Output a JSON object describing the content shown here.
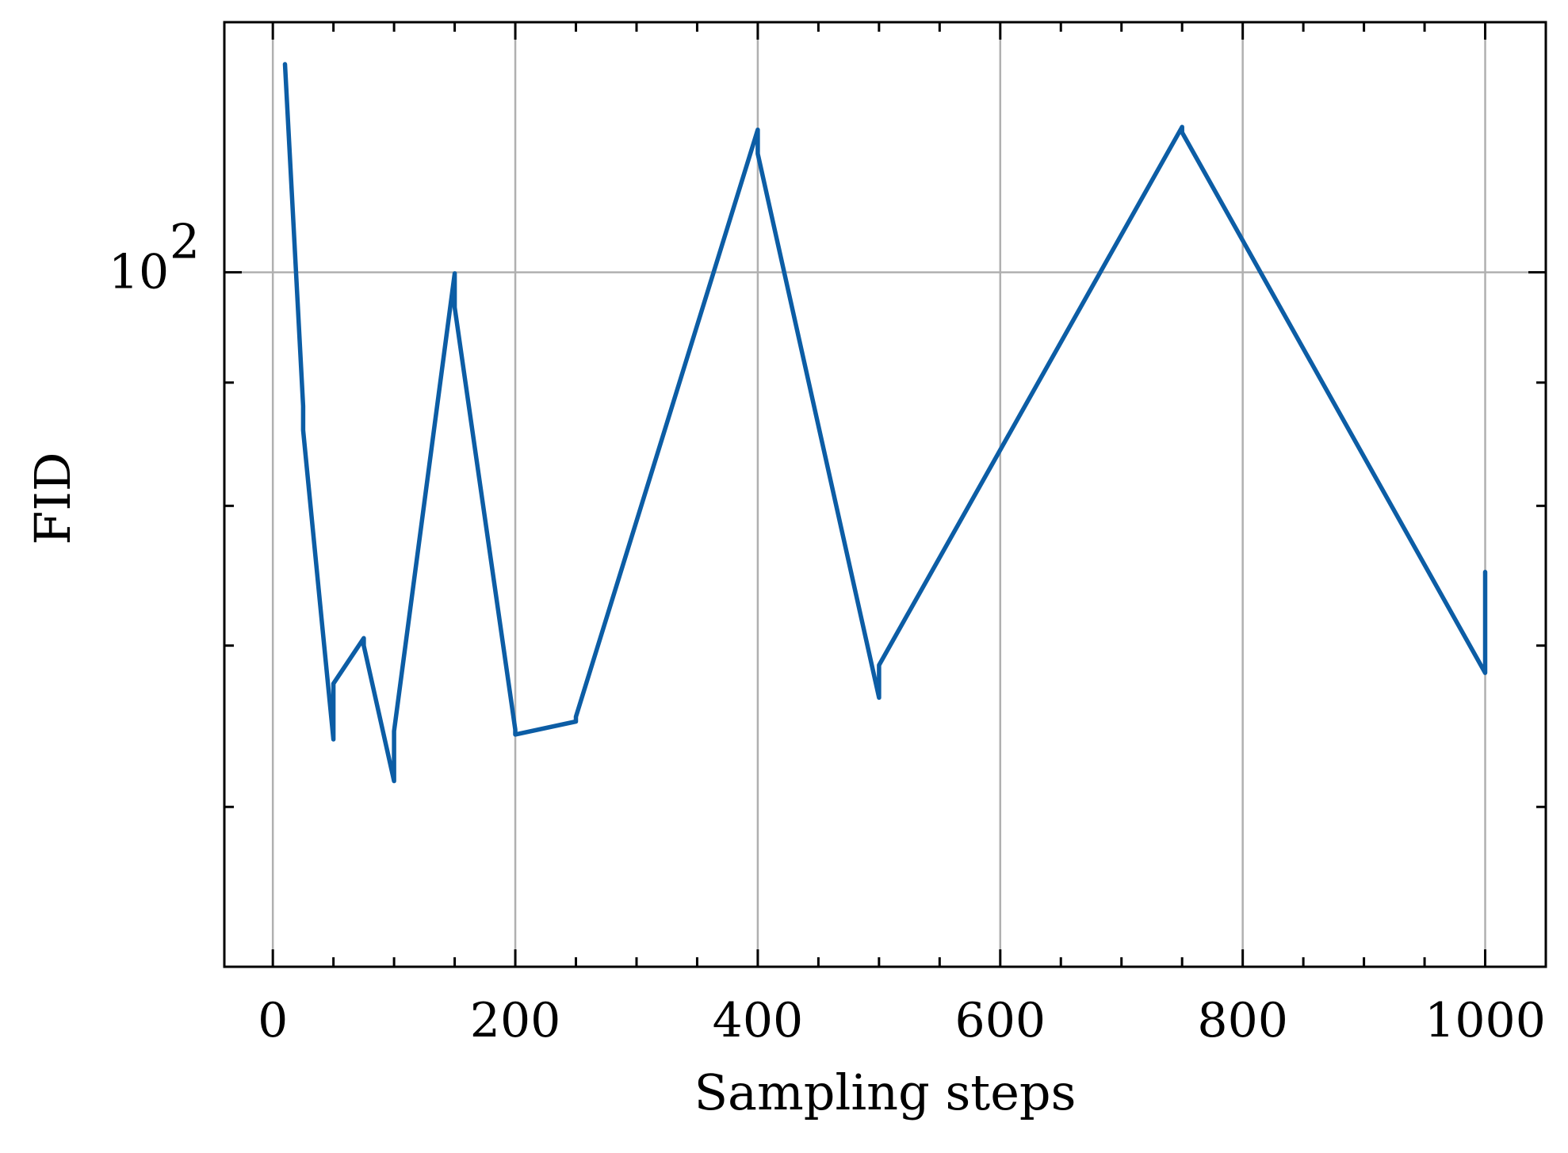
{
  "chart_data": {
    "type": "line",
    "xlabel": "Sampling steps",
    "ylabel": "FID",
    "xlim": [
      -40,
      1050
    ],
    "ylim": [
      51.5,
      127
    ],
    "yscale": "log",
    "grid": true,
    "x_ticks": [
      0,
      200,
      400,
      600,
      800,
      1000
    ],
    "x_tick_labels": [
      "0",
      "200",
      "400",
      "600",
      "800",
      "1000"
    ],
    "y_tick_base": "10",
    "y_tick_exponent": "2",
    "y_major_ticks": [
      100
    ],
    "y_minor_ticks": [
      60,
      70,
      80,
      90,
      200
    ],
    "series": [
      {
        "color": "#0c5da5",
        "x": [
          10,
          25,
          25,
          40,
          50,
          50,
          75,
          75,
          100,
          100,
          150,
          150,
          200,
          200,
          250,
          250,
          400,
          400,
          500,
          500,
          750,
          750,
          1000,
          1000
        ],
        "y": [
          122,
          88,
          86,
          72,
          64,
          67.5,
          70.5,
          70,
          61.5,
          64.5,
          99.9,
          96.7,
          64.6,
          64.3,
          65.1,
          65.4,
          114.6,
          112,
          66.6,
          68.7,
          114.9,
          114.3,
          68.2,
          75.1
        ]
      }
    ]
  }
}
